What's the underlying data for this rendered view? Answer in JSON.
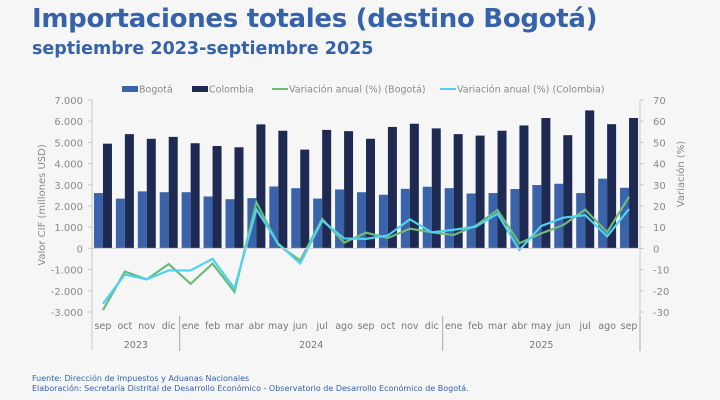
{
  "header": {
    "title": "Importaciones totales (destino Bogotá)",
    "subtitle": "septiembre 2023-septiembre 2025"
  },
  "footer": {
    "source": "Fuente: Dirección de Impuestos y Aduanas Nacionales",
    "credit": "Elaboración: Secretaría Distrital de Desarrollo Económico - Observatorio de Desarrollo Económico de Bogotá."
  },
  "colors": {
    "title": "#3562a8",
    "bogota_bar": "#3a63aa",
    "colombia_bar": "#1f2a52",
    "bogota_line": "#6dbb7b",
    "colombia_line": "#4fd1f0",
    "axis_text": "#8a8a8a"
  },
  "chart_data": {
    "type": "bar+line",
    "categories": [
      "sep",
      "oct",
      "nov",
      "dic",
      "ene",
      "feb",
      "mar",
      "abr",
      "may",
      "jun",
      "jul",
      "ago",
      "sep",
      "oct",
      "nov",
      "dic",
      "ene",
      "feb",
      "mar",
      "abr",
      "may",
      "jun",
      "jul",
      "ago",
      "sep"
    ],
    "year_groups": [
      {
        "label": "2023",
        "count": 4
      },
      {
        "label": "2024",
        "count": 12
      },
      {
        "label": "2025",
        "count": 9
      }
    ],
    "ylabel": "Valor CIF (millones USD)",
    "y2label": "Variación (%)",
    "ylim": [
      -3000,
      7000
    ],
    "y2lim": [
      -30,
      70
    ],
    "yticks": [
      "-3.000",
      "-2.000",
      "-1.000",
      "0",
      "1.000",
      "2.000",
      "3.000",
      "4.000",
      "5.000",
      "6.000",
      "7.000"
    ],
    "y2ticks": [
      "-30",
      "-20",
      "-10",
      "0",
      "10",
      "20",
      "30",
      "40",
      "50",
      "60",
      "70"
    ],
    "legend_position": "top",
    "series": [
      {
        "name": "Bogotá",
        "type": "bar",
        "axis": "left",
        "values": [
          2610,
          2350,
          2690,
          2650,
          2650,
          2450,
          2320,
          2370,
          2920,
          2840,
          2350,
          2780,
          2650,
          2530,
          2810,
          2910,
          2840,
          2590,
          2610,
          2800,
          2990,
          3050,
          2610,
          3290,
          2860
        ]
      },
      {
        "name": "Colombia",
        "type": "bar",
        "axis": "left",
        "values": [
          4940,
          5390,
          5170,
          5260,
          4960,
          4830,
          4770,
          5850,
          5550,
          4660,
          5590,
          5530,
          5170,
          5730,
          5880,
          5660,
          5390,
          5320,
          5550,
          5800,
          6150,
          5340,
          6510,
          5860,
          6150
        ]
      },
      {
        "name": "Variación anual (%) (Bogotá)",
        "type": "line",
        "axis": "right",
        "values": [
          -29.1,
          -10.9,
          -14.6,
          -7.4,
          -16.7,
          -7.2,
          -20.5,
          21.7,
          1.6,
          -5.7,
          13.9,
          2.7,
          7.4,
          4.9,
          9.3,
          7.6,
          6.3,
          10.7,
          18.1,
          2.4,
          7.1,
          11.0,
          18.3,
          7.6,
          24.4
        ]
      },
      {
        "name": "Variación anual (%) (Colombia)",
        "type": "line",
        "axis": "right",
        "values": [
          -26.1,
          -12.3,
          -14.6,
          -10.4,
          -10.4,
          -4.9,
          -18.9,
          18.4,
          2.2,
          -7.1,
          13.1,
          4.7,
          4.5,
          6.1,
          13.7,
          7.6,
          8.8,
          10.2,
          16.4,
          -0.8,
          10.6,
          14.5,
          15.7,
          5.7,
          18.6
        ]
      }
    ]
  }
}
